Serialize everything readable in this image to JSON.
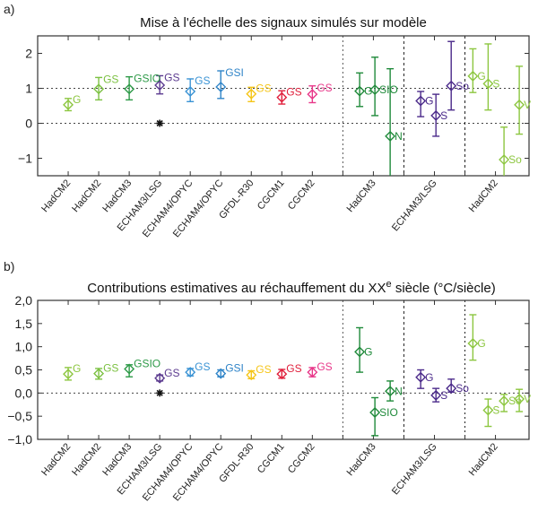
{
  "chart_data": [
    {
      "type": "scatter",
      "panel_label": "a)",
      "title": "Mise à l'échelle des signaux simulés sur modèle",
      "title_superscript": "",
      "title_suffix": "",
      "ylim": [
        -1.5,
        2.5
      ],
      "yticks": [
        2,
        1,
        0,
        -1
      ],
      "ytick_labels": [
        "2",
        "1",
        "0",
        "−1"
      ],
      "hlines": [
        1,
        0
      ],
      "grid": false,
      "categories": [
        "HadCM2",
        "HadCM2",
        "HadCM3",
        "ECHAM3/LSG",
        "ECHAM4/OPYC",
        "ECHAM4/OPYC",
        "GFDL-R30",
        "CGCM1",
        "CGCM2",
        "HadCM3",
        "ECHAM3/LSG",
        "HadCM2"
      ],
      "reference_marker": {
        "category_index": 3,
        "value": 0,
        "symbol": "asterisk"
      },
      "points": [
        {
          "category_index": 0,
          "label": "G",
          "value": 0.53,
          "low": 0.36,
          "high": 0.71,
          "color": "#8cc63f"
        },
        {
          "category_index": 1,
          "label": "GS",
          "value": 0.98,
          "low": 0.67,
          "high": 1.31,
          "color": "#7cc142"
        },
        {
          "category_index": 2,
          "label": "GSIO",
          "value": 0.98,
          "low": 0.67,
          "high": 1.33,
          "color": "#2e9a48"
        },
        {
          "category_index": 3,
          "label": "GS",
          "value": 1.09,
          "low": 0.84,
          "high": 1.36,
          "color": "#5b3a8f"
        },
        {
          "category_index": 4,
          "label": "GS",
          "value": 0.91,
          "low": 0.62,
          "high": 1.27,
          "color": "#3a93d4"
        },
        {
          "category_index": 5,
          "label": "GSI",
          "value": 1.04,
          "low": 0.71,
          "high": 1.5,
          "color": "#2f84c8"
        },
        {
          "category_index": 6,
          "label": "GS",
          "value": 0.84,
          "low": 0.62,
          "high": 1.03,
          "color": "#f5c518"
        },
        {
          "category_index": 7,
          "label": "GS",
          "value": 0.74,
          "low": 0.55,
          "high": 0.93,
          "color": "#e0203c"
        },
        {
          "category_index": 8,
          "label": "GS",
          "value": 0.83,
          "low": 0.59,
          "high": 1.07,
          "color": "#e8388a"
        },
        {
          "category_index": 9,
          "label": "G",
          "value": 0.92,
          "low": 0.48,
          "high": 1.44,
          "color": "#1f8a3a"
        },
        {
          "category_index": 9,
          "label": "SIO",
          "value": 0.96,
          "low": 0.22,
          "high": 1.89,
          "color": "#1f8a3a"
        },
        {
          "category_index": 9,
          "label": "N",
          "value": -0.37,
          "low": -2.0,
          "high": 1.56,
          "color": "#1f8a3a"
        },
        {
          "category_index": 10,
          "label": "G",
          "value": 0.64,
          "low": 0.19,
          "high": 0.91,
          "color": "#4b2a8a"
        },
        {
          "category_index": 10,
          "label": "S",
          "value": 0.22,
          "low": -0.37,
          "high": 0.83,
          "color": "#4b2a8a"
        },
        {
          "category_index": 10,
          "label": "So",
          "value": 1.07,
          "low": 0.38,
          "high": 2.34,
          "color": "#4b2a8a"
        },
        {
          "category_index": 11,
          "label": "G",
          "value": 1.35,
          "low": 0.88,
          "high": 2.13,
          "color": "#8cc63f"
        },
        {
          "category_index": 11,
          "label": "S",
          "value": 1.13,
          "low": 0.38,
          "high": 2.27,
          "color": "#8cc63f"
        },
        {
          "category_index": 11,
          "label": "So",
          "value": -1.04,
          "low": -2.0,
          "high": -0.11,
          "color": "#8cc63f"
        },
        {
          "category_index": 11,
          "label": "V",
          "value": 0.53,
          "low": -0.31,
          "high": 1.63,
          "color": "#8cc63f"
        }
      ]
    },
    {
      "type": "scatter",
      "panel_label": "b)",
      "title": "Contributions estimatives au réchauffement du XX",
      "title_superscript": "e",
      "title_suffix": " siècle (°C/siècle)",
      "ylim": [
        -1.0,
        2.0
      ],
      "yticks": [
        2.0,
        1.5,
        1.0,
        0.5,
        0.0,
        -0.5,
        -1.0
      ],
      "ytick_labels": [
        "2,0",
        "1,5",
        "1,0",
        "0,5",
        "0,0",
        "−0,5",
        "−1,0"
      ],
      "hlines": [
        0
      ],
      "grid": false,
      "categories": [
        "HadCM2",
        "HadCM2",
        "HadCM3",
        "ECHAM3/LSG",
        "ECHAM4/OPYC",
        "ECHAM4/OPYC",
        "GFDL-R30",
        "CGCM1",
        "CGCM2",
        "HadCM3",
        "ECHAM3/LSG",
        "HadCM2"
      ],
      "reference_marker": {
        "category_index": 3,
        "value": 0,
        "symbol": "asterisk"
      },
      "points": [
        {
          "category_index": 0,
          "label": "G",
          "value": 0.41,
          "low": 0.28,
          "high": 0.55,
          "color": "#8cc63f"
        },
        {
          "category_index": 1,
          "label": "GS",
          "value": 0.42,
          "low": 0.3,
          "high": 0.53,
          "color": "#7cc142"
        },
        {
          "category_index": 2,
          "label": "GSIO",
          "value": 0.52,
          "low": 0.35,
          "high": 0.61,
          "color": "#2e9a48"
        },
        {
          "category_index": 3,
          "label": "GS",
          "value": 0.32,
          "low": 0.26,
          "high": 0.39,
          "color": "#5b3a8f"
        },
        {
          "category_index": 4,
          "label": "GS",
          "value": 0.45,
          "low": 0.37,
          "high": 0.53,
          "color": "#3a93d4"
        },
        {
          "category_index": 5,
          "label": "GSI",
          "value": 0.42,
          "low": 0.35,
          "high": 0.5,
          "color": "#2f84c8"
        },
        {
          "category_index": 6,
          "label": "GS",
          "value": 0.39,
          "low": 0.31,
          "high": 0.48,
          "color": "#f5c518"
        },
        {
          "category_index": 7,
          "label": "GS",
          "value": 0.41,
          "low": 0.32,
          "high": 0.51,
          "color": "#e0203c"
        },
        {
          "category_index": 8,
          "label": "GS",
          "value": 0.45,
          "low": 0.35,
          "high": 0.55,
          "color": "#e8388a"
        },
        {
          "category_index": 9,
          "label": "G",
          "value": 0.89,
          "low": 0.45,
          "high": 1.41,
          "color": "#1f8a3a"
        },
        {
          "category_index": 9,
          "label": "SIO",
          "value": -0.42,
          "low": -0.92,
          "high": -0.1,
          "color": "#1f8a3a"
        },
        {
          "category_index": 9,
          "label": "N",
          "value": 0.04,
          "low": -0.17,
          "high": 0.26,
          "color": "#1f8a3a"
        },
        {
          "category_index": 10,
          "label": "G",
          "value": 0.34,
          "low": 0.1,
          "high": 0.5,
          "color": "#4b2a8a"
        },
        {
          "category_index": 10,
          "label": "S",
          "value": -0.05,
          "low": -0.19,
          "high": 0.1,
          "color": "#4b2a8a"
        },
        {
          "category_index": 10,
          "label": "So",
          "value": 0.1,
          "low": 0.02,
          "high": 0.3,
          "color": "#4b2a8a"
        },
        {
          "category_index": 11,
          "label": "G",
          "value": 1.07,
          "low": 0.71,
          "high": 1.69,
          "color": "#8cc63f"
        },
        {
          "category_index": 11,
          "label": "S",
          "value": -0.37,
          "low": -0.72,
          "high": -0.13,
          "color": "#8cc63f"
        },
        {
          "category_index": 11,
          "label": "So",
          "value": -0.17,
          "low": -0.4,
          "high": -0.03,
          "color": "#8cc63f"
        },
        {
          "category_index": 11,
          "label": "V",
          "value": -0.13,
          "low": -0.4,
          "high": 0.08,
          "color": "#8cc63f"
        }
      ]
    }
  ]
}
